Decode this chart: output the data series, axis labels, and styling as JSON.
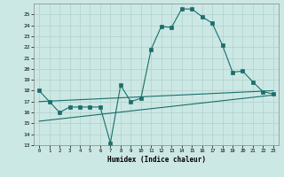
{
  "xlabel": "Humidex (Indice chaleur)",
  "background_color": "#cce8e4",
  "grid_color": "#b0d0cc",
  "line_color": "#1a6e6a",
  "xlim": [
    -0.5,
    23.5
  ],
  "ylim": [
    13,
    26
  ],
  "yticks": [
    13,
    14,
    15,
    16,
    17,
    18,
    19,
    20,
    21,
    22,
    23,
    24,
    25
  ],
  "xticks": [
    0,
    1,
    2,
    3,
    4,
    5,
    6,
    7,
    8,
    9,
    10,
    11,
    12,
    13,
    14,
    15,
    16,
    17,
    18,
    19,
    20,
    21,
    22,
    23
  ],
  "series1_x": [
    0,
    1,
    2,
    3,
    4,
    5,
    6,
    7,
    8,
    9,
    10,
    11,
    12,
    13,
    14,
    15,
    16,
    17,
    18,
    19,
    20,
    21,
    22,
    23
  ],
  "series1_y": [
    18.0,
    17.0,
    16.0,
    16.5,
    16.5,
    16.5,
    16.5,
    13.2,
    18.5,
    17.0,
    17.3,
    21.8,
    23.9,
    23.8,
    25.5,
    25.5,
    24.8,
    24.2,
    22.2,
    19.7,
    19.8,
    18.8,
    17.9,
    17.7
  ],
  "series2_x": [
    0,
    23
  ],
  "series2_y": [
    15.2,
    17.6
  ],
  "series3_x": [
    0,
    23
  ],
  "series3_y": [
    17.0,
    18.0
  ]
}
